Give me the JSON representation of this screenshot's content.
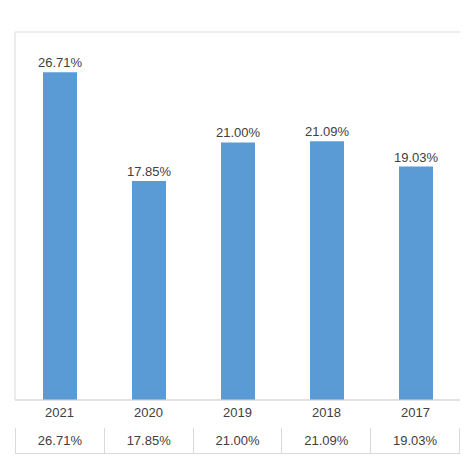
{
  "chart_data": {
    "type": "bar",
    "categories": [
      "2021",
      "2020",
      "2019",
      "2018",
      "2017"
    ],
    "values": [
      26.71,
      17.85,
      21.0,
      21.09,
      19.03
    ],
    "value_labels": [
      "26.71%",
      "17.85%",
      "21.00%",
      "21.09%",
      "19.03%"
    ],
    "color": "#5b9bd5",
    "ylim": [
      0,
      30
    ],
    "yticks": [
      0,
      5,
      10,
      15,
      20,
      25,
      30
    ],
    "grid": true,
    "data_labels": true,
    "tick_labels": "x"
  }
}
